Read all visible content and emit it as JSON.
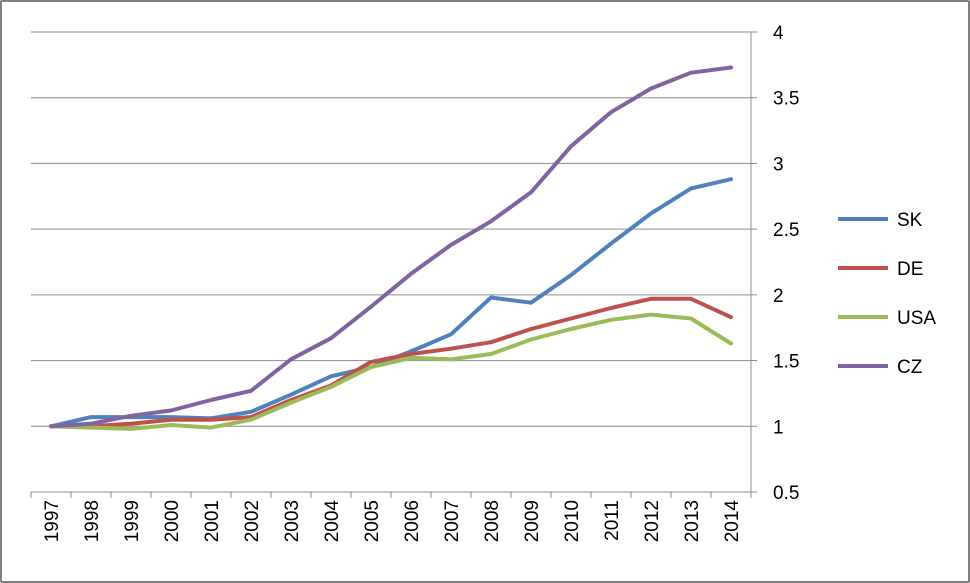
{
  "chart_data": {
    "type": "line",
    "title": "",
    "xlabel": "",
    "ylabel": "",
    "categories": [
      "1997",
      "1998",
      "1999",
      "2000",
      "2001",
      "2002",
      "2003",
      "2004",
      "2005",
      "2006",
      "2007",
      "2008",
      "2009",
      "2010",
      "2011",
      "2012",
      "2013",
      "2014"
    ],
    "ylim": [
      0.5,
      4
    ],
    "yticks": [
      "0.5",
      "1",
      "1.5",
      "2",
      "2.5",
      "3",
      "3.5",
      "4"
    ],
    "ytick_values": [
      0.5,
      1,
      1.5,
      2,
      2.5,
      3,
      3.5,
      4
    ],
    "grid": true,
    "y_axis_side": "right",
    "legend_position": "right",
    "series": [
      {
        "name": "SK",
        "color": "#4f81bd",
        "values": [
          1.0,
          1.07,
          1.07,
          1.07,
          1.06,
          1.11,
          1.24,
          1.38,
          1.45,
          1.57,
          1.7,
          1.98,
          1.94,
          2.15,
          2.39,
          2.62,
          2.81,
          2.88
        ]
      },
      {
        "name": "DE",
        "color": "#c0504d",
        "values": [
          1.0,
          1.0,
          1.02,
          1.05,
          1.05,
          1.07,
          1.2,
          1.31,
          1.49,
          1.55,
          1.59,
          1.64,
          1.74,
          1.82,
          1.9,
          1.97,
          1.97,
          1.83
        ]
      },
      {
        "name": "USA",
        "color": "#9bbb59",
        "values": [
          1.0,
          0.99,
          0.98,
          1.01,
          0.99,
          1.05,
          1.18,
          1.3,
          1.45,
          1.52,
          1.51,
          1.55,
          1.66,
          1.74,
          1.81,
          1.85,
          1.82,
          1.63
        ]
      },
      {
        "name": "CZ",
        "color": "#8064a2",
        "values": [
          1.0,
          1.02,
          1.08,
          1.12,
          1.2,
          1.27,
          1.51,
          1.67,
          1.91,
          2.16,
          2.38,
          2.56,
          2.78,
          3.13,
          3.39,
          3.57,
          3.69,
          3.73
        ]
      }
    ]
  }
}
